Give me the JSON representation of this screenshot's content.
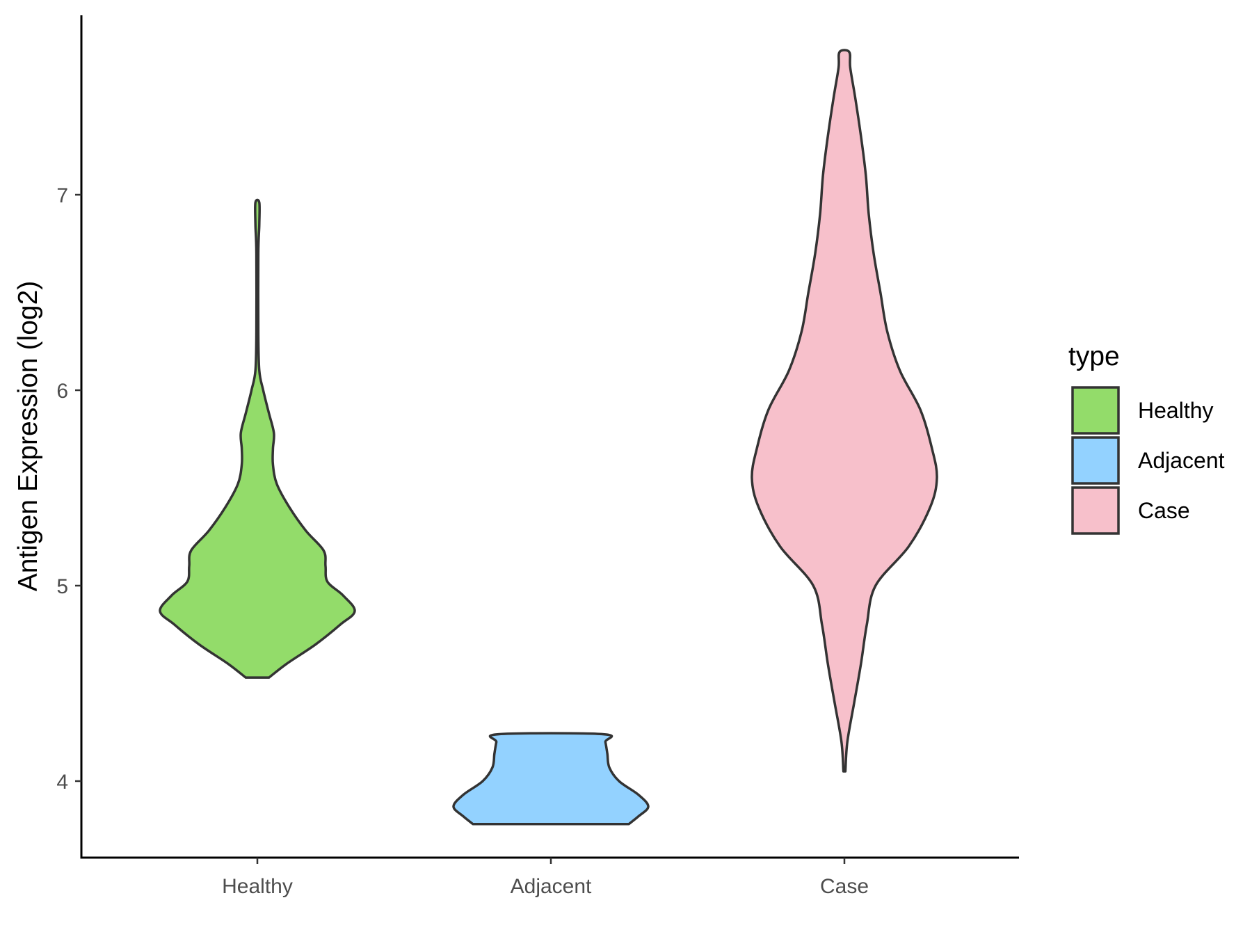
{
  "chart_data": {
    "type": "violin",
    "title": "",
    "xlabel": "",
    "ylabel": "Antigen Expression (log2)",
    "ylim": [
      3.6,
      7.9
    ],
    "y_ticks": [
      4,
      5,
      6,
      7
    ],
    "categories": [
      "Healthy",
      "Adjacent",
      "Case"
    ],
    "grid": false,
    "legend": {
      "title": "type",
      "position": "right",
      "entries": [
        "Healthy",
        "Adjacent",
        "Case"
      ]
    },
    "colors": {
      "Healthy": "#93dc6a",
      "Adjacent": "#93d2ff",
      "Case": "#f7c0cb",
      "outline": "#333333"
    },
    "series": [
      {
        "category": "Healthy",
        "min": 4.53,
        "max": 6.96,
        "density": [
          [
            4.53,
            0.12
          ],
          [
            4.6,
            0.3
          ],
          [
            4.7,
            0.6
          ],
          [
            4.8,
            0.85
          ],
          [
            4.87,
            1.0
          ],
          [
            4.95,
            0.88
          ],
          [
            5.02,
            0.72
          ],
          [
            5.1,
            0.7
          ],
          [
            5.18,
            0.68
          ],
          [
            5.28,
            0.5
          ],
          [
            5.4,
            0.33
          ],
          [
            5.52,
            0.2
          ],
          [
            5.62,
            0.16
          ],
          [
            5.7,
            0.16
          ],
          [
            5.78,
            0.17
          ],
          [
            5.88,
            0.12
          ],
          [
            6.0,
            0.06
          ],
          [
            6.1,
            0.02
          ],
          [
            6.3,
            0.01
          ],
          [
            6.7,
            0.01
          ],
          [
            6.85,
            0.02
          ],
          [
            6.96,
            0.02
          ]
        ]
      },
      {
        "category": "Adjacent",
        "min": 3.78,
        "max": 4.24,
        "density": [
          [
            3.78,
            0.8
          ],
          [
            3.82,
            0.9
          ],
          [
            3.87,
            1.0
          ],
          [
            3.93,
            0.9
          ],
          [
            4.0,
            0.7
          ],
          [
            4.07,
            0.6
          ],
          [
            4.14,
            0.58
          ],
          [
            4.2,
            0.56
          ],
          [
            4.24,
            0.54
          ]
        ]
      },
      {
        "category": "Case",
        "min": 4.05,
        "max": 7.73,
        "density": [
          [
            4.05,
            0.01
          ],
          [
            4.2,
            0.03
          ],
          [
            4.4,
            0.1
          ],
          [
            4.6,
            0.17
          ],
          [
            4.8,
            0.23
          ],
          [
            5.0,
            0.32
          ],
          [
            5.2,
            0.66
          ],
          [
            5.4,
            0.88
          ],
          [
            5.55,
            0.95
          ],
          [
            5.7,
            0.9
          ],
          [
            5.9,
            0.78
          ],
          [
            6.1,
            0.57
          ],
          [
            6.3,
            0.44
          ],
          [
            6.5,
            0.37
          ],
          [
            6.7,
            0.3
          ],
          [
            6.9,
            0.25
          ],
          [
            7.1,
            0.22
          ],
          [
            7.3,
            0.17
          ],
          [
            7.5,
            0.11
          ],
          [
            7.65,
            0.06
          ],
          [
            7.73,
            0.05
          ]
        ]
      }
    ]
  }
}
